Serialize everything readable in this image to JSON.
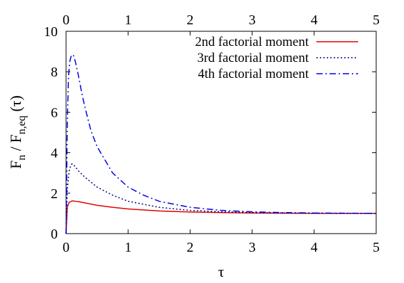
{
  "chart_data": {
    "type": "line",
    "title": "",
    "xlabel": "τ",
    "ylabel": {
      "prefix": "F",
      "sub1": "n",
      "mid": " / F",
      "sub2": "n,eq",
      "suffix": " (τ)"
    },
    "xlim": [
      0,
      5
    ],
    "ylim": [
      0,
      10
    ],
    "x_ticks": [
      "0",
      "1",
      "2",
      "3",
      "4",
      "5"
    ],
    "x2_ticks": [
      "0",
      "1",
      "2",
      "3",
      "4",
      "5"
    ],
    "y_ticks": [
      "0",
      "2",
      "4",
      "6",
      "8",
      "10"
    ],
    "grid": false,
    "legend_position": "top-right",
    "series": [
      {
        "name": "2nd factorial moment",
        "color": "#e00000",
        "dash": "solid",
        "x": [
          0,
          0.02,
          0.05,
          0.1,
          0.15,
          0.2,
          0.3,
          0.5,
          0.75,
          1.0,
          1.5,
          2.0,
          2.5,
          3.0,
          3.5,
          4.0,
          4.5,
          5.0
        ],
        "y": [
          0,
          1.3,
          1.55,
          1.62,
          1.6,
          1.58,
          1.52,
          1.4,
          1.3,
          1.22,
          1.12,
          1.07,
          1.04,
          1.02,
          1.01,
          1.0,
          1.0,
          1.0
        ]
      },
      {
        "name": "3rd factorial moment",
        "color": "#000080",
        "dash": "dotted",
        "x": [
          0,
          0.02,
          0.05,
          0.08,
          0.1,
          0.12,
          0.15,
          0.2,
          0.3,
          0.5,
          0.75,
          1.0,
          1.5,
          2.0,
          2.5,
          3.0,
          3.5,
          4.0,
          4.5,
          5.0
        ],
        "y": [
          0,
          2.2,
          3.1,
          3.4,
          3.45,
          3.4,
          3.3,
          3.1,
          2.8,
          2.3,
          1.9,
          1.6,
          1.3,
          1.15,
          1.08,
          1.04,
          1.02,
          1.01,
          1.0,
          1.0
        ]
      },
      {
        "name": "4th factorial moment",
        "color": "#0000e0",
        "dash": "dashdot",
        "x": [
          0,
          0.02,
          0.04,
          0.06,
          0.08,
          0.1,
          0.12,
          0.15,
          0.2,
          0.25,
          0.3,
          0.4,
          0.5,
          0.75,
          1.0,
          1.25,
          1.5,
          2.0,
          2.5,
          3.0,
          3.5,
          4.0,
          4.5,
          5.0
        ],
        "y": [
          0,
          5.5,
          7.8,
          8.5,
          8.75,
          8.85,
          8.8,
          8.5,
          7.8,
          7.0,
          6.3,
          5.1,
          4.3,
          3.0,
          2.3,
          1.9,
          1.6,
          1.3,
          1.15,
          1.08,
          1.04,
          1.02,
          1.01,
          1.0
        ]
      }
    ]
  }
}
